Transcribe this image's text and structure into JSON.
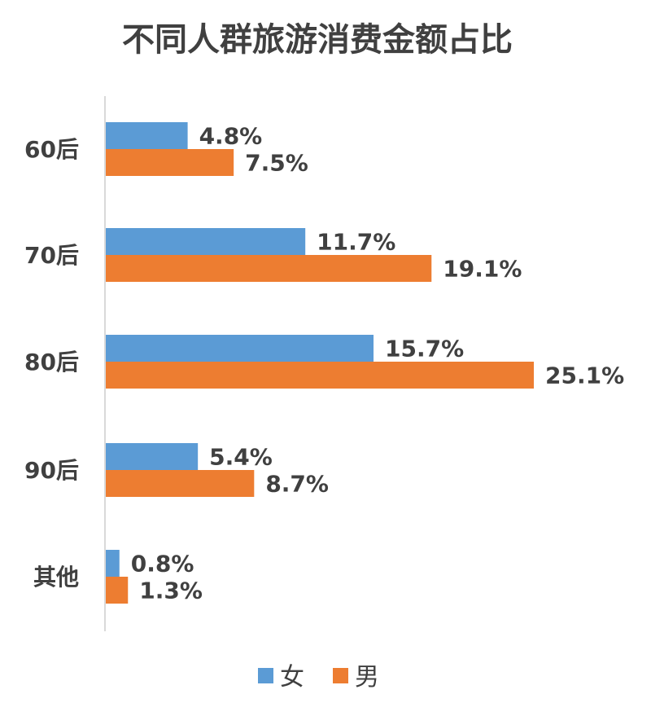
{
  "chart_data": {
    "type": "bar",
    "orientation": "horizontal",
    "title": "不同人群旅游消费金额占比",
    "categories": [
      "60后",
      "70后",
      "80后",
      "90后",
      "其他"
    ],
    "series": [
      {
        "name": "女",
        "color": "#5B9BD5",
        "values": [
          4.8,
          11.7,
          15.7,
          5.4,
          0.8
        ],
        "labels": [
          "4.8%",
          "11.7%",
          "15.7%",
          "5.4%",
          "0.8%"
        ]
      },
      {
        "name": "男",
        "color": "#ED7D31",
        "values": [
          7.5,
          19.1,
          25.1,
          8.7,
          1.3
        ],
        "labels": [
          "7.5%",
          "19.1%",
          "25.1%",
          "8.7%",
          "1.3%"
        ]
      }
    ],
    "value_unit": "%",
    "xlim": [
      0,
      25.1
    ],
    "grid": false,
    "legend_position": "bottom"
  }
}
